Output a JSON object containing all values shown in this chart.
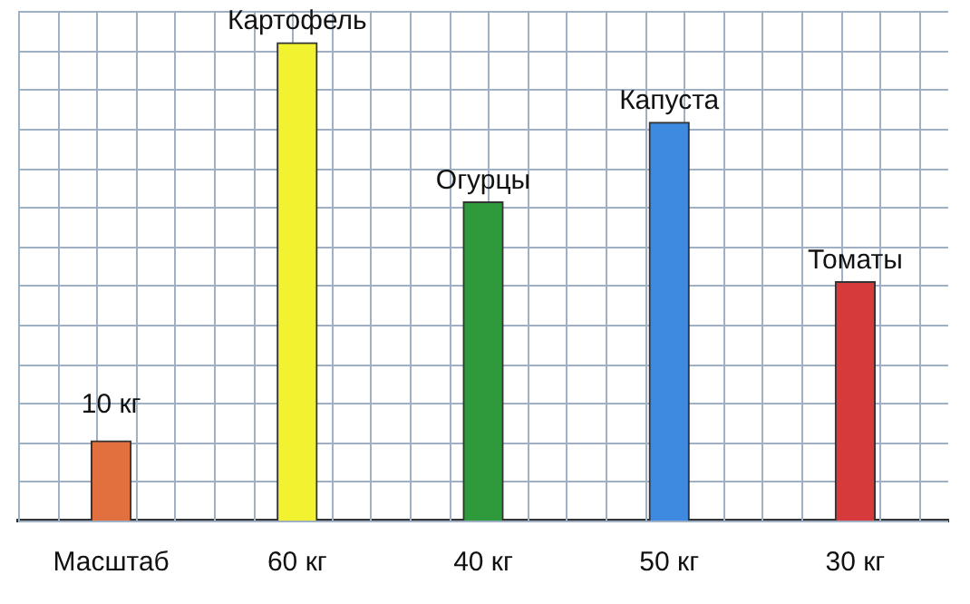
{
  "chart_data": {
    "type": "bar",
    "categories": [
      "Масштаб",
      "Картофель",
      "Огурцы",
      "Капуста",
      "Томаты"
    ],
    "values": [
      10,
      60,
      40,
      50,
      30
    ],
    "colors": [
      "#e2703e",
      "#f2f230",
      "#2f9a3c",
      "#3e8ae0",
      "#d63a3a"
    ],
    "value_labels": [
      "10 кг",
      "60 кг",
      "40 кг",
      "50 кг",
      "30 кг"
    ],
    "ylim": [
      0,
      64
    ],
    "grid": true
  }
}
